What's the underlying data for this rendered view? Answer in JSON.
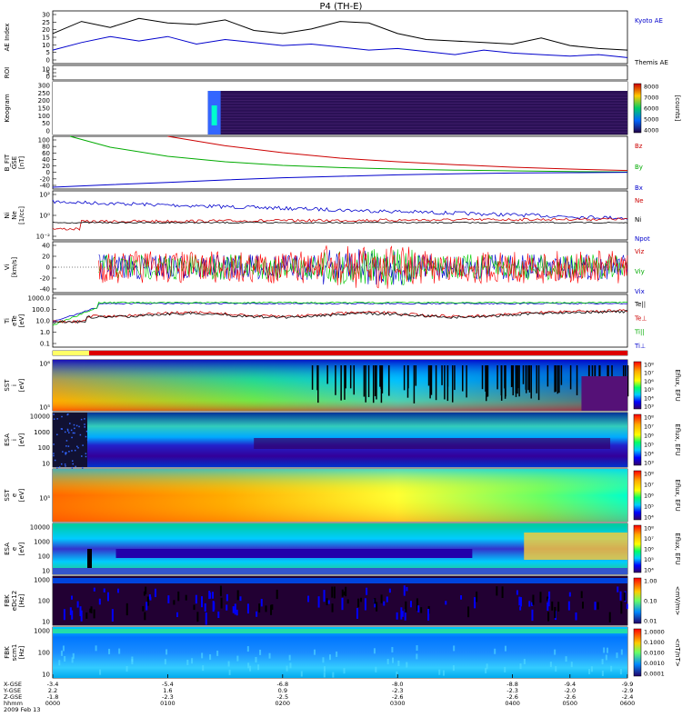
{
  "title": "P4 (TH-E)",
  "chart_data": [
    {
      "type": "line",
      "panel": "ae",
      "ylabel": "AE Index",
      "yticks": [
        "30",
        "25",
        "20",
        "15",
        "10",
        "5",
        "0"
      ],
      "ylim": [
        0,
        35
      ],
      "series": [
        {
          "name": "Kyoto AE",
          "color": "#0000cc",
          "x": [
            0,
            0.05,
            0.1,
            0.15,
            0.2,
            0.25,
            0.3,
            0.35,
            0.4,
            0.45,
            0.5,
            0.55,
            0.6,
            0.65,
            0.7,
            0.75,
            0.8,
            0.85,
            0.9,
            0.95,
            1.0
          ],
          "values": [
            9,
            14,
            18,
            15,
            18,
            13,
            16,
            14,
            12,
            13,
            11,
            9,
            10,
            8,
            6,
            9,
            7,
            6,
            5,
            6,
            4
          ]
        },
        {
          "name": "Themis AE",
          "color": "#000000",
          "x": [
            0,
            0.05,
            0.1,
            0.15,
            0.2,
            0.25,
            0.3,
            0.35,
            0.4,
            0.45,
            0.5,
            0.55,
            0.6,
            0.65,
            0.7,
            0.75,
            0.8,
            0.85,
            0.9,
            0.95,
            1.0
          ],
          "values": [
            20,
            28,
            24,
            30,
            27,
            26,
            29,
            22,
            20,
            23,
            28,
            27,
            20,
            16,
            15,
            14,
            13,
            17,
            12,
            10,
            9
          ]
        }
      ]
    },
    {
      "type": "line",
      "panel": "roi",
      "ylabel": "ROI",
      "yticks": [
        "10",
        "5",
        "0"
      ]
    },
    {
      "type": "heatmap",
      "panel": "keogram",
      "ylabel": "Keogram",
      "yticks": [
        "300",
        "250",
        "200",
        "150",
        "100",
        "50",
        "0"
      ],
      "colorbar": {
        "label": "[counts]",
        "ticks": [
          "8000",
          "7000",
          "6000",
          "5000",
          "4000"
        ]
      }
    },
    {
      "type": "line",
      "panel": "bfield",
      "ylabel": [
        "B_FIT",
        "GSE",
        "[nT]"
      ],
      "yticks": [
        "100",
        "80",
        "60",
        "40",
        "20",
        "0",
        "-20",
        "-40"
      ],
      "ylim": [
        -45,
        100
      ],
      "series": [
        {
          "name": "Bz",
          "color": "#cc0000",
          "x": [
            0.2,
            0.3,
            0.4,
            0.5,
            0.6,
            0.7,
            0.8,
            0.9,
            1.0
          ],
          "values": [
            100,
            74,
            55,
            40,
            30,
            22,
            15,
            10,
            6
          ]
        },
        {
          "name": "By",
          "color": "#00aa00",
          "x": [
            0.03,
            0.1,
            0.2,
            0.3,
            0.4,
            0.5,
            0.6,
            0.7,
            0.8,
            0.9,
            1.0
          ],
          "values": [
            100,
            70,
            45,
            30,
            20,
            14,
            10,
            7,
            5,
            3,
            2
          ]
        },
        {
          "name": "Bx",
          "color": "#0000cc",
          "x": [
            0,
            0.1,
            0.2,
            0.3,
            0.4,
            0.5,
            0.6,
            0.7,
            0.8,
            0.9,
            1.0
          ],
          "values": [
            -40,
            -33,
            -27,
            -20,
            -14,
            -10,
            -6,
            -3,
            -1,
            0,
            1
          ]
        }
      ]
    },
    {
      "type": "line",
      "panel": "density",
      "ylabel": [
        "Ni",
        "Ne",
        "[1/cc]"
      ],
      "yticks": [
        "10²",
        "10⁰",
        "10⁻²"
      ],
      "series": [
        {
          "name": "Ne"
        },
        {
          "name": "Ni"
        },
        {
          "name": "Npot"
        }
      ]
    },
    {
      "type": "line",
      "panel": "velocity",
      "ylabel": [
        "Vi",
        "[km/s]"
      ],
      "yticks": [
        "40",
        "20",
        "0",
        "-20",
        "-40"
      ],
      "ylim": [
        -50,
        50
      ],
      "series": [
        {
          "name": "Viz"
        },
        {
          "name": "Viy"
        },
        {
          "name": "Vix"
        }
      ]
    },
    {
      "type": "line",
      "panel": "temperature",
      "ylabel": [
        "Ti",
        "eTe",
        "[eV]"
      ],
      "yticks": [
        "1000.0",
        "100.0",
        "10.0",
        "1.0",
        "0.1"
      ],
      "series": [
        {
          "name": "Te||"
        },
        {
          "name": "Te⊥"
        },
        {
          "name": "Ti||"
        },
        {
          "name": "Ti⊥"
        }
      ]
    },
    {
      "type": "heatmap",
      "panel": "sst-i",
      "ylabel": [
        "SST",
        "i",
        "[eV]"
      ],
      "yticks": [
        "10⁶",
        "10⁵"
      ],
      "colorbar": {
        "label": "Eflux, EFU",
        "ticks": [
          "10⁸",
          "10⁷",
          "10⁶",
          "10⁵",
          "10⁴",
          "10³"
        ]
      }
    },
    {
      "type": "heatmap",
      "panel": "esa-i",
      "ylabel": [
        "ESA",
        "i",
        "[eV]"
      ],
      "yticks": [
        "10000",
        "1000",
        "100",
        "10"
      ],
      "colorbar": {
        "label": "Eflux, EFU",
        "ticks": [
          "10⁸",
          "10⁷",
          "10⁶",
          "10⁵",
          "10⁴",
          "10³"
        ]
      }
    },
    {
      "type": "heatmap",
      "panel": "sst-e",
      "ylabel": [
        "SST",
        "e",
        "[eV]"
      ],
      "yticks": [
        "10⁵"
      ],
      "colorbar": {
        "label": "Eflux, EFU",
        "ticks": [
          "10⁸",
          "10⁷",
          "10⁶",
          "10⁵",
          "10⁴"
        ]
      }
    },
    {
      "type": "heatmap",
      "panel": "esa-e",
      "ylabel": [
        "ESA",
        "e",
        "[eV]"
      ],
      "yticks": [
        "10000",
        "1000",
        "100",
        "10"
      ],
      "colorbar": {
        "label": "Eflux, EFU",
        "ticks": [
          "10⁸",
          "10⁷",
          "10⁶",
          "10⁵",
          "10⁴"
        ]
      }
    },
    {
      "type": "heatmap",
      "panel": "fbk-e",
      "ylabel": [
        "FBK",
        "eDc12",
        "[Hz]"
      ],
      "yticks": [
        "1000",
        "100",
        "10"
      ],
      "colorbar": {
        "label": "<mV/m>",
        "ticks": [
          "1.00",
          "0.10",
          "0.01"
        ]
      }
    },
    {
      "type": "heatmap",
      "panel": "fbk-b",
      "ylabel": [
        "FBK",
        "scm1",
        "[Hz]"
      ],
      "yticks": [
        "1000",
        "100",
        "10"
      ],
      "colorbar": {
        "label": "<nT/nT>",
        "ticks": [
          "1.0000",
          "0.1000",
          "0.0100",
          "0.0010",
          "0.0001"
        ]
      }
    }
  ],
  "xaxis": {
    "row_labels": [
      "X-GSE",
      "Y-GSE",
      "Z-GSE",
      "hhmm",
      "2009 Feb 13"
    ],
    "ticks": [
      {
        "x": 0,
        "vals": [
          "-3.4",
          "2.2",
          "-1.8",
          "0000"
        ]
      },
      {
        "x": 0.2,
        "vals": [
          "-5.4",
          "1.6",
          "-2.3",
          "0100"
        ]
      },
      {
        "x": 0.4,
        "vals": [
          "-6.8",
          "0.9",
          "-2.5",
          "0200"
        ]
      },
      {
        "x": 0.6,
        "vals": [
          "-8.0",
          "-2.3",
          "-2.6",
          "0300"
        ]
      },
      {
        "x": 0.8,
        "vals": [
          "-8.8",
          "-2.3",
          "-2.6",
          "0400"
        ]
      },
      {
        "x": 0.9,
        "vals": [
          "-9.4",
          "-2.0",
          "-2.6",
          "0500"
        ]
      },
      {
        "x": 1.0,
        "vals": [
          "-9.9",
          "-2.9",
          "-2.4",
          "0600"
        ]
      }
    ]
  }
}
